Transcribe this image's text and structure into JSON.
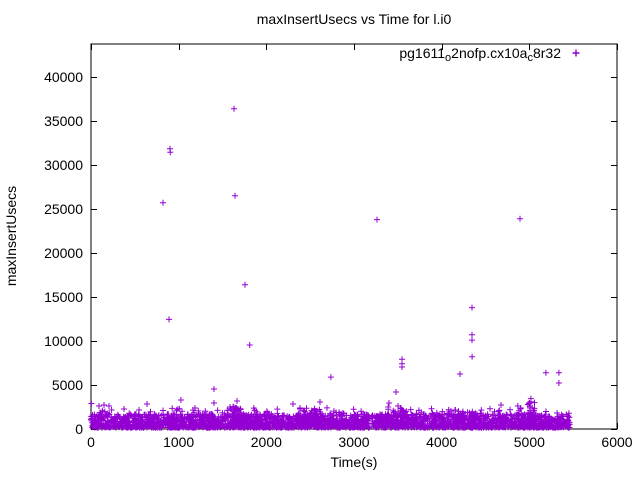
{
  "window": {
    "background": "#ffffff",
    "foreground": "#000000"
  },
  "chart_data": {
    "type": "scatter",
    "title": "maxInsertUsecs vs Time for l.i0",
    "xlabel": "Time(s)",
    "ylabel": "maxInsertUsecs",
    "xlim": [
      0,
      6000
    ],
    "ylim": [
      0,
      43750
    ],
    "xticks": [
      0,
      1000,
      2000,
      3000,
      4000,
      5000,
      6000
    ],
    "yticks": [
      0,
      5000,
      10000,
      15000,
      20000,
      25000,
      30000,
      35000,
      40000
    ],
    "grid": false,
    "legend_position": "top-right-inside",
    "legend_marker": "plus",
    "legend_segments": [
      {
        "text": "pg1611",
        "sub": false
      },
      {
        "text": "o",
        "sub": true
      },
      {
        "text": "2nofp.cx10a",
        "sub": false
      },
      {
        "text": "c",
        "sub": true
      },
      {
        "text": "8r32",
        "sub": false
      }
    ],
    "point_color": "#9400d3",
    "outliers": [
      [
        1631,
        36400
      ],
      [
        901,
        31850
      ],
      [
        904,
        31450
      ],
      [
        1643,
        26500
      ],
      [
        821,
        25700
      ],
      [
        3262,
        23800
      ],
      [
        4894,
        23900
      ],
      [
        1757,
        16400
      ],
      [
        4346,
        13800
      ],
      [
        890,
        12450
      ],
      [
        4346,
        10700
      ],
      [
        4346,
        10100
      ],
      [
        1810,
        9550
      ],
      [
        4347,
        8200
      ],
      [
        3548,
        7920
      ],
      [
        3548,
        7420
      ],
      [
        3548,
        7050
      ],
      [
        5189,
        6400
      ],
      [
        5337,
        6400
      ],
      [
        4209,
        6250
      ],
      [
        2737,
        5900
      ],
      [
        5337,
        5230
      ],
      [
        1403,
        4550
      ],
      [
        3479,
        4200
      ],
      [
        5018,
        3450
      ],
      [
        1026,
        3295
      ],
      [
        1665,
        3180
      ],
      [
        5018,
        3100
      ],
      [
        2612,
        3070
      ],
      [
        1403,
        2950
      ],
      [
        3399,
        2950
      ],
      [
        5,
        2900
      ],
      [
        639,
        2840
      ],
      [
        2304,
        2840
      ],
      [
        148,
        2730
      ],
      [
        4677,
        2730
      ],
      [
        91,
        2610
      ],
      [
        205,
        2610
      ],
      [
        3502,
        2610
      ],
      [
        4869,
        2610
      ],
      [
        1585,
        2500
      ],
      [
        3390,
        2500
      ],
      [
        2384,
        2390
      ],
      [
        1186,
        2390
      ],
      [
        4903,
        2390
      ],
      [
        2458,
        2350
      ],
      [
        376,
        2270
      ],
      [
        3390,
        2250
      ],
      [
        548,
        2160
      ],
      [
        4152,
        2160
      ],
      [
        4106,
        2050
      ]
    ],
    "dense_band": {
      "t_min": 0,
      "t_max": 5460,
      "count": 2600,
      "v_min": 150,
      "v_max": 1700,
      "spike_chance": 0.05,
      "spike_v_max": 2400,
      "seed": 1234
    },
    "clusters": [
      {
        "t": 1665,
        "count": 50,
        "v_min": 300,
        "v_max": 2600,
        "spread": 45
      },
      {
        "t": 2540,
        "count": 25,
        "v_min": 300,
        "v_max": 2400,
        "spread": 40
      },
      {
        "t": 3555,
        "count": 15,
        "v_min": 300,
        "v_max": 2200,
        "spread": 30
      },
      {
        "t": 4215,
        "count": 25,
        "v_min": 300,
        "v_max": 2100,
        "spread": 40
      },
      {
        "t": 4365,
        "count": 20,
        "v_min": 300,
        "v_max": 2250,
        "spread": 30
      },
      {
        "t": 4900,
        "count": 12,
        "v_min": 300,
        "v_max": 2300,
        "spread": 30
      },
      {
        "t": 5020,
        "count": 35,
        "v_min": 300,
        "v_max": 3000,
        "spread": 40
      }
    ]
  }
}
